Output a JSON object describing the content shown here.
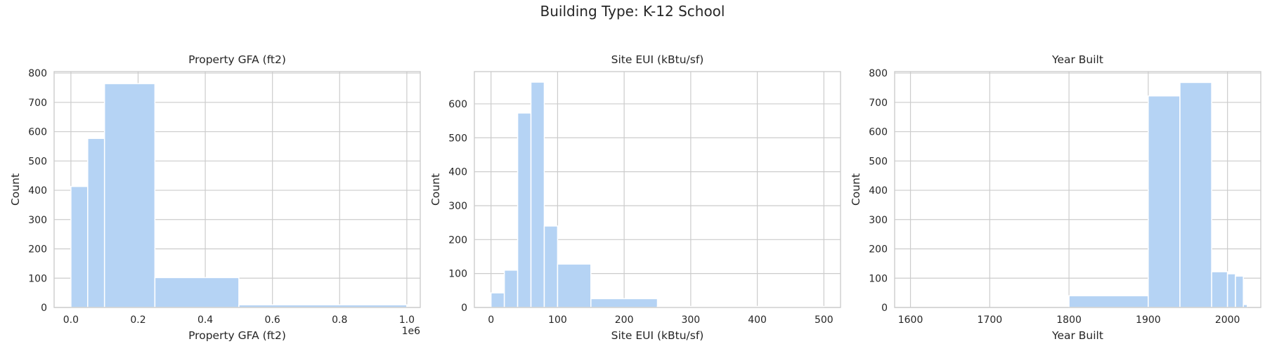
{
  "figure": {
    "suptitle": "Building Type: K-12 School"
  },
  "chart_data": [
    {
      "type": "bar",
      "title": "Property GFA (ft2)",
      "xlabel": "Property GFA (ft2)",
      "ylabel": "Count",
      "x_offset_label": "1e6",
      "xlim": [
        -0.05,
        1.04
      ],
      "ylim": [
        0,
        805
      ],
      "xticks": [
        0.0,
        0.2,
        0.4,
        0.6,
        0.8,
        1.0
      ],
      "xtick_labels": [
        "0.0",
        "0.2",
        "0.4",
        "0.6",
        "0.8",
        "1.0"
      ],
      "yticks": [
        0,
        100,
        200,
        300,
        400,
        500,
        600,
        700,
        800
      ],
      "bins": [
        {
          "x0": 0.0,
          "x1": 0.05,
          "count": 413
        },
        {
          "x0": 0.05,
          "x1": 0.1,
          "count": 577
        },
        {
          "x0": 0.1,
          "x1": 0.25,
          "count": 764
        },
        {
          "x0": 0.25,
          "x1": 0.5,
          "count": 102
        },
        {
          "x0": 0.5,
          "x1": 1.0,
          "count": 9
        }
      ]
    },
    {
      "type": "bar",
      "title": "Site EUI (kBtu/sf)",
      "xlabel": "Site EUI (kBtu/sf)",
      "ylabel": "Count",
      "xlim": [
        -25,
        525
      ],
      "ylim": [
        0,
        695
      ],
      "xticks": [
        0,
        100,
        200,
        300,
        400,
        500
      ],
      "xtick_labels": [
        "0",
        "100",
        "200",
        "300",
        "400",
        "500"
      ],
      "yticks": [
        0,
        100,
        200,
        300,
        400,
        500,
        600
      ],
      "bins": [
        {
          "x0": 0,
          "x1": 20,
          "count": 43
        },
        {
          "x0": 20,
          "x1": 40,
          "count": 110
        },
        {
          "x0": 40,
          "x1": 60,
          "count": 573
        },
        {
          "x0": 60,
          "x1": 80,
          "count": 664
        },
        {
          "x0": 80,
          "x1": 100,
          "count": 240
        },
        {
          "x0": 100,
          "x1": 150,
          "count": 128
        },
        {
          "x0": 150,
          "x1": 250,
          "count": 26
        },
        {
          "x0": 250,
          "x1": 500,
          "count": 3
        }
      ]
    },
    {
      "type": "bar",
      "title": "Year Built",
      "xlabel": "Year Built",
      "ylabel": "Count",
      "xlim": [
        1580,
        2042
      ],
      "ylim": [
        0,
        805
      ],
      "xticks": [
        1600,
        1700,
        1800,
        1900,
        2000
      ],
      "xtick_labels": [
        "1600",
        "1700",
        "1800",
        "1900",
        "2000"
      ],
      "yticks": [
        0,
        100,
        200,
        300,
        400,
        500,
        600,
        700,
        800
      ],
      "bins": [
        {
          "x0": 1600,
          "x1": 1800,
          "count": 0
        },
        {
          "x0": 1800,
          "x1": 1900,
          "count": 40
        },
        {
          "x0": 1900,
          "x1": 1940,
          "count": 722
        },
        {
          "x0": 1940,
          "x1": 1980,
          "count": 768
        },
        {
          "x0": 1980,
          "x1": 2000,
          "count": 122
        },
        {
          "x0": 2000,
          "x1": 2010,
          "count": 115
        },
        {
          "x0": 2010,
          "x1": 2020,
          "count": 107
        },
        {
          "x0": 2020,
          "x1": 2025,
          "count": 10
        }
      ]
    }
  ]
}
